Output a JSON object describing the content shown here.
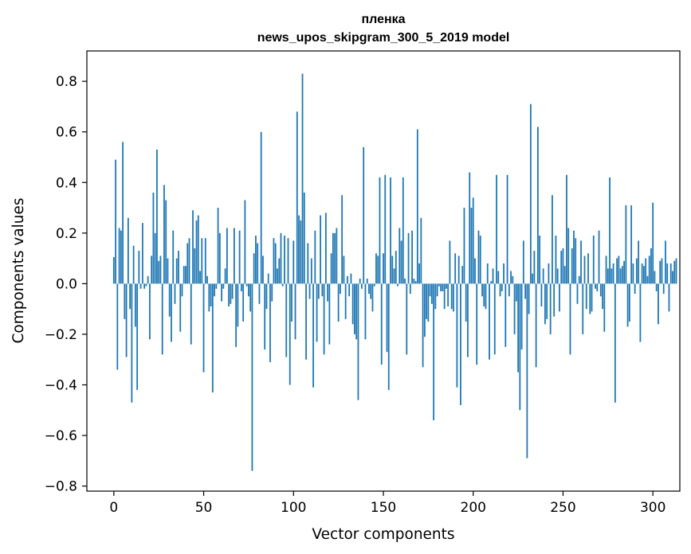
{
  "chart_data": {
    "type": "bar",
    "title_line1": "пленка",
    "title_line2": "news_upos_skipgram_300_5_2019 model",
    "xlabel": "Vector components",
    "ylabel": "Components values",
    "xlim": [
      -15,
      315
    ],
    "ylim": [
      -0.82,
      0.92
    ],
    "xticks": [
      0,
      50,
      100,
      150,
      200,
      250,
      300
    ],
    "xtick_labels": [
      "0",
      "50",
      "100",
      "150",
      "200",
      "250",
      "300"
    ],
    "yticks": [
      -0.8,
      -0.6,
      -0.4,
      -0.2,
      0.0,
      0.2,
      0.4,
      0.6,
      0.8
    ],
    "ytick_labels": [
      "−0.8",
      "−0.6",
      "−0.4",
      "−0.2",
      "0.0",
      "0.2",
      "0.4",
      "0.6",
      "0.8"
    ],
    "bar_color": "#1f77b4",
    "grid": false,
    "values": [
      0.105,
      0.49,
      -0.34,
      0.22,
      0.21,
      0.56,
      -0.14,
      -0.29,
      0.26,
      -0.1,
      -0.47,
      0.15,
      -0.17,
      -0.42,
      0.13,
      -0.02,
      0.24,
      -0.02,
      -0.01,
      0.03,
      -0.22,
      0.11,
      0.36,
      0.2,
      0.53,
      0.09,
      0.11,
      -0.28,
      0.39,
      0.33,
      0.1,
      -0.13,
      -0.23,
      0.21,
      -0.08,
      0.1,
      0.13,
      -0.19,
      -0.05,
      0.07,
      0.07,
      0.16,
      0.18,
      -0.24,
      0.29,
      0.14,
      0.25,
      0.27,
      0.05,
      0.18,
      -0.35,
      0.18,
      0.03,
      -0.11,
      -0.09,
      -0.43,
      -0.05,
      -0.02,
      0.3,
      0.2,
      -0.07,
      -0.02,
      0.06,
      0.22,
      -0.09,
      -0.08,
      -0.06,
      0.22,
      -0.25,
      -0.17,
      0.21,
      -0.03,
      -0.15,
      0.33,
      -0.01,
      -0.05,
      -0.11,
      -0.74,
      0.12,
      0.19,
      0.16,
      -0.08,
      0.6,
      0.11,
      -0.26,
      -0.1,
      0.04,
      -0.31,
      -0.07,
      0.18,
      0.16,
      0.06,
      0.1,
      0.2,
      -0.01,
      0.19,
      -0.29,
      0.18,
      -0.4,
      -0.15,
      0.17,
      -0.22,
      0.68,
      0.27,
      0.25,
      0.83,
      0.36,
      -0.3,
      0.16,
      -0.06,
      0.1,
      -0.41,
      0.21,
      -0.23,
      -0.06,
      0.27,
      -0.05,
      -0.28,
      0.28,
      -0.07,
      -0.24,
      0.12,
      0.2,
      0.2,
      0.22,
      -0.15,
      -0.04,
      0.35,
      0.11,
      -0.14,
      0.03,
      -0.05,
      0.04,
      -0.16,
      -0.2,
      -0.22,
      -0.46,
      0.02,
      -0.02,
      0.54,
      -0.22,
      0.02,
      -0.04,
      -0.06,
      -0.11,
      -0.01,
      0.12,
      0.11,
      0.42,
      -0.32,
      0.12,
      0.43,
      -0.27,
      -0.42,
      0.42,
      0.11,
      0.06,
      0.13,
      -0.01,
      0.22,
      0.17,
      0.42,
      0.02,
      -0.28,
      0.2,
      -0.04,
      0.21,
      0.02,
      0.01,
      0.61,
      0.08,
      0.26,
      -0.33,
      -0.21,
      -0.14,
      -0.15,
      -0.05,
      -0.08,
      -0.54,
      -0.1,
      -0.05,
      -0.01,
      -0.03,
      -0.03,
      -0.1,
      -0.02,
      -0.09,
      0.17,
      -0.1,
      -0.11,
      0.12,
      -0.41,
      0.11,
      -0.48,
      0.07,
      0.3,
      -0.15,
      -0.29,
      0.44,
      0.3,
      0.34,
      0.1,
      -0.32,
      0.21,
      0.19,
      -0.05,
      -0.09,
      -0.1,
      0.08,
      -0.3,
      0.01,
      0.06,
      -0.28,
      0.43,
      0.05,
      -0.05,
      -0.03,
      0.08,
      -0.25,
      0.43,
      -0.05,
      0.05,
      0.03,
      -0.2,
      -0.07,
      -0.35,
      -0.5,
      -0.26,
      0.17,
      -0.06,
      -0.69,
      -0.12,
      0.71,
      0.04,
      0.13,
      -0.33,
      0.62,
      0.19,
      -0.09,
      0.06,
      -0.16,
      -0.14,
      0.08,
      -0.2,
      0.35,
      -0.13,
      0.19,
      0.06,
      -0.11,
      0.13,
      0.14,
      0.07,
      0.43,
      0.22,
      -0.28,
      0.14,
      0.21,
      0.18,
      -0.08,
      0.03,
      0.17,
      -0.2,
      0.11,
      -0.1,
      0.12,
      -0.12,
      -0.11,
      0.19,
      -0.02,
      -0.03,
      0.21,
      -0.05,
      -0.1,
      -0.19,
      0.11,
      0.06,
      0.42,
      0.06,
      0.08,
      -0.47,
      0.1,
      0.11,
      0.06,
      0.07,
      0.09,
      0.31,
      -0.17,
      -0.15,
      0.31,
      0.08,
      -0.04,
      0.1,
      0.17,
      -0.23,
      0.08,
      0.07,
      0.1,
      0.03,
      0.11,
      0.14,
      0.32,
      0.05,
      -0.03,
      -0.16,
      0.09,
      0.1,
      -0.04,
      0.17,
      0.08,
      -0.11,
      0.08,
      0.05,
      0.09,
      0.1
    ]
  }
}
